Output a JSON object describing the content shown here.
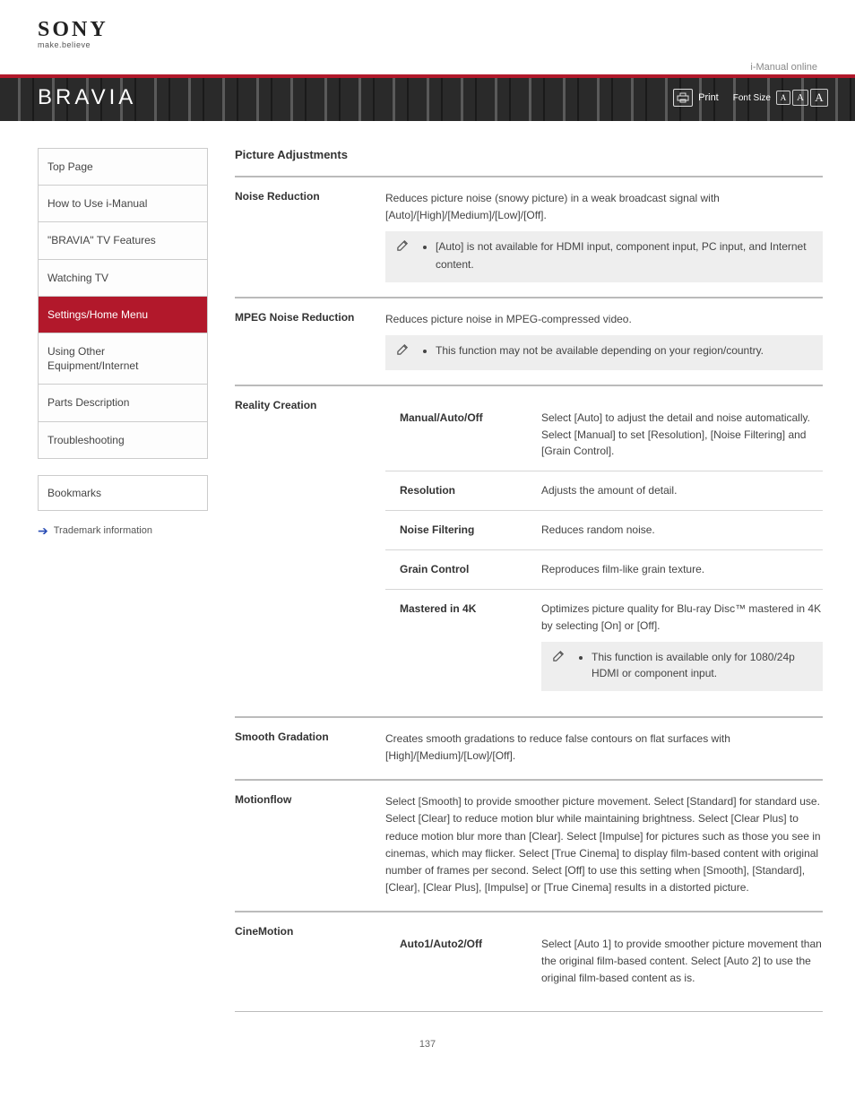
{
  "header": {
    "logo": "SONY",
    "tagline": "make.believe",
    "iguide": "i-Manual online"
  },
  "banner": {
    "brand": "BRAVIA",
    "print": "Print",
    "font": "Font Size"
  },
  "sidebar": {
    "items": [
      {
        "label": "Top Page"
      },
      {
        "label": "How to Use i-Manual"
      },
      {
        "label": "\"BRAVIA\" TV Features"
      },
      {
        "label": "Watching TV"
      },
      {
        "label": "Settings/Home Menu",
        "active": true
      },
      {
        "label": "Using Other Equipment/Internet"
      },
      {
        "label": "Parts Description"
      },
      {
        "label": "Troubleshooting"
      }
    ],
    "bookmarks": "Bookmarks",
    "trademark": "Trademark information"
  },
  "content": {
    "title": "Picture Adjustments",
    "rows": [
      {
        "label": "Noise Reduction",
        "body": "Reduces picture noise (snowy picture) in a weak broadcast signal with [Auto]/[High]/[Medium]/[Low]/[Off].",
        "note": "[Auto] is not available for HDMI input, component input, PC input, and Internet content."
      },
      {
        "label": "MPEG Noise Reduction",
        "body": "Reduces picture noise in MPEG-compressed video.",
        "note": "This function may not be available depending on your region/country."
      },
      {
        "label": "Reality Creation",
        "body": "",
        "subrows": [
          {
            "label": "Manual/Auto/Off",
            "body": "Select [Auto] to adjust the detail and noise automatically. Select [Manual] to set [Resolution], [Noise Filtering] and [Grain Control]."
          },
          {
            "label": "Resolution",
            "body": "Adjusts the amount of detail."
          },
          {
            "label": "Noise Filtering",
            "body": "Reduces random noise."
          },
          {
            "label": "Grain Control",
            "body": "Reproduces film-like grain texture."
          },
          {
            "label": "Mastered in 4K",
            "body": "Optimizes picture quality for Blu-ray Disc™ mastered in 4K by selecting [On] or [Off].",
            "note": "This function is available only for 1080/24p HDMI or component input."
          }
        ]
      },
      {
        "label": "Smooth Gradation",
        "body": "Creates smooth gradations to reduce false contours on flat surfaces with [High]/[Medium]/[Low]/[Off]."
      },
      {
        "label": "Motionflow",
        "body": "Select [Smooth] to provide smoother picture movement. Select [Standard] for standard use. Select [Clear] to reduce motion blur while maintaining brightness. Select [Clear Plus] to reduce motion blur more than [Clear]. Select [Impulse] for pictures such as those you see in cinemas, which may flicker. Select [True Cinema] to display film-based content with original number of frames per second. Select [Off] to use this setting when [Smooth], [Standard], [Clear], [Clear Plus], [Impulse] or [True Cinema] results in a distorted picture."
      },
      {
        "label": "CineMotion",
        "body": "",
        "subrows": [
          {
            "label": "Auto1/Auto2/Off",
            "body": "Select [Auto 1] to provide smoother picture movement than the original film-based content. Select [Auto 2] to use the original film-based content as is."
          }
        ]
      }
    ]
  },
  "page": {
    "number": "137"
  }
}
